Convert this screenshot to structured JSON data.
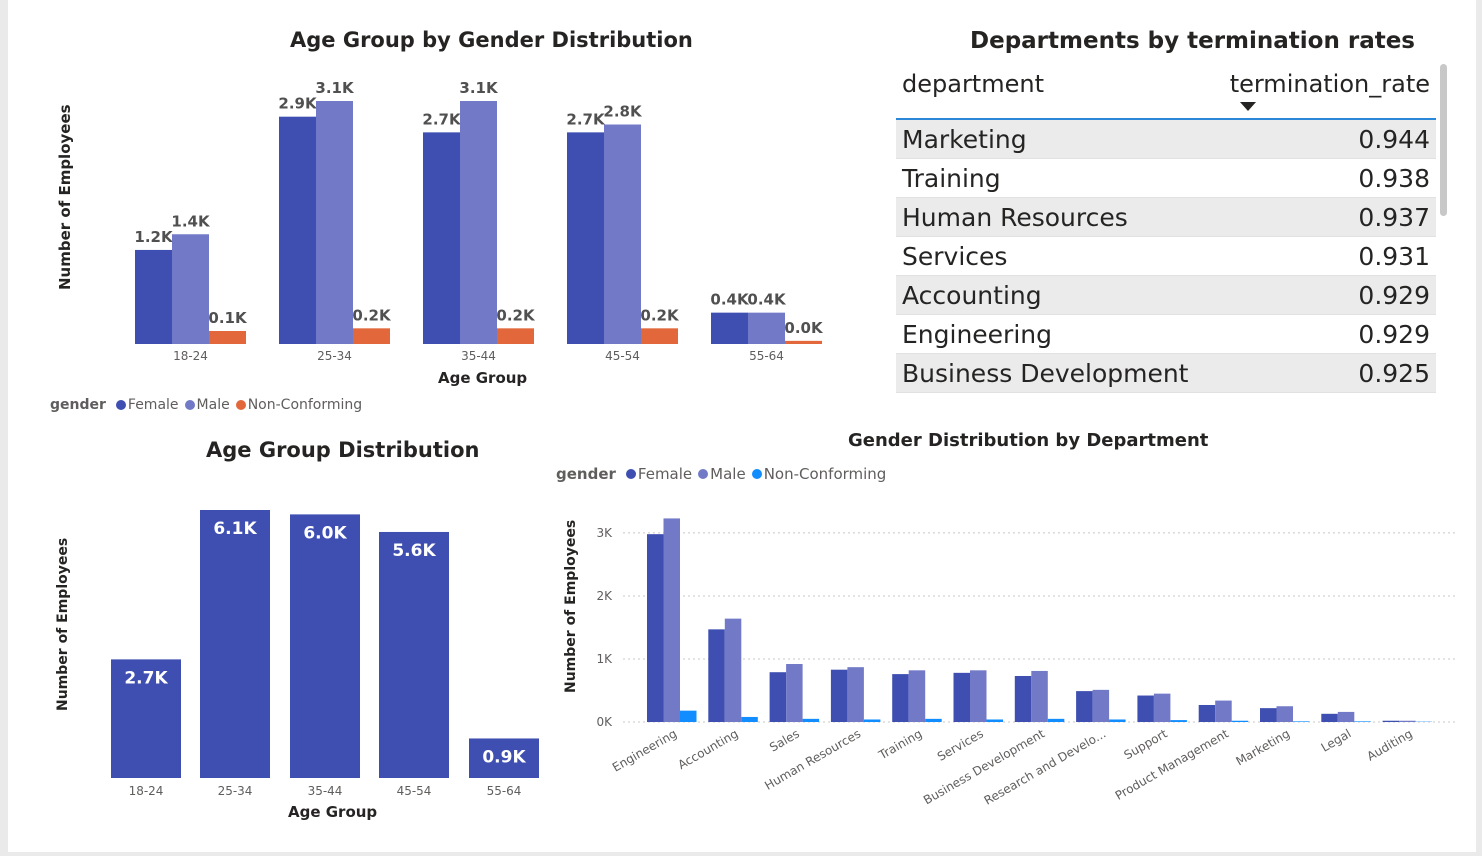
{
  "colors": {
    "female": "#3f4fb1",
    "male": "#727ac8",
    "non_conforming_orange": "#e2683c",
    "non_conforming_blue": "#118dff"
  },
  "legend": {
    "title": "gender",
    "items": [
      "Female",
      "Male",
      "Non-Conforming"
    ]
  },
  "chart_data": [
    {
      "type": "bar",
      "title": "Age Group by Gender Distribution",
      "xlabel": "Age Group",
      "ylabel": "Number of Employees",
      "categories": [
        "18-24",
        "25-34",
        "35-44",
        "45-54",
        "55-64"
      ],
      "series": [
        {
          "name": "Female",
          "values": [
            1.2,
            2.9,
            2.7,
            2.7,
            0.4
          ],
          "labels": [
            "1.2K",
            "2.9K",
            "2.7K",
            "2.7K",
            "0.4K"
          ]
        },
        {
          "name": "Male",
          "values": [
            1.4,
            3.1,
            3.1,
            2.8,
            0.4
          ],
          "labels": [
            "1.4K",
            "3.1K",
            "3.1K",
            "2.8K",
            "0.4K"
          ]
        },
        {
          "name": "Non-Conforming",
          "values": [
            0.1,
            0.2,
            0.2,
            0.2,
            0.04
          ],
          "labels": [
            "0.1K",
            "0.2K",
            "0.2K",
            "0.2K",
            "0.0K"
          ]
        }
      ],
      "unit": "K",
      "grid": false,
      "legend_position": "bottom-left"
    },
    {
      "type": "bar",
      "title": "Age Group Distribution",
      "xlabel": "Age Group",
      "ylabel": "Number of Employees",
      "categories": [
        "18-24",
        "25-34",
        "35-44",
        "45-54",
        "55-64"
      ],
      "values": [
        2.7,
        6.1,
        6.0,
        5.6,
        0.9
      ],
      "labels": [
        "2.7K",
        "6.1K",
        "6.0K",
        "5.6K",
        "0.9K"
      ],
      "unit": "K",
      "grid": false
    },
    {
      "type": "bar",
      "title": "Gender Distribution by Department",
      "xlabel": "",
      "ylabel": "Number of Employees",
      "categories": [
        "Engineering",
        "Accounting",
        "Sales",
        "Human Resources",
        "Training",
        "Services",
        "Business Development",
        "Research and Develo...",
        "Support",
        "Product Management",
        "Marketing",
        "Legal",
        "Auditing"
      ],
      "series": [
        {
          "name": "Female",
          "values": [
            2980,
            1470,
            790,
            830,
            760,
            780,
            730,
            490,
            420,
            270,
            220,
            130,
            20
          ]
        },
        {
          "name": "Male",
          "values": [
            3230,
            1640,
            920,
            870,
            820,
            820,
            810,
            510,
            450,
            340,
            250,
            160,
            20
          ]
        },
        {
          "name": "Non-Conforming",
          "values": [
            180,
            80,
            50,
            40,
            50,
            40,
            50,
            40,
            30,
            20,
            10,
            10,
            5
          ]
        }
      ],
      "yticks": [
        "0K",
        "1K",
        "2K",
        "3K"
      ],
      "ylim": [
        0,
        3300
      ],
      "grid": true,
      "legend_position": "top-left"
    },
    {
      "type": "table",
      "title": "Departments by termination rates",
      "columns": [
        "department",
        "termination_rate"
      ],
      "rows": [
        [
          "Marketing",
          "0.944"
        ],
        [
          "Training",
          "0.938"
        ],
        [
          "Human Resources",
          "0.937"
        ],
        [
          "Services",
          "0.931"
        ],
        [
          "Accounting",
          "0.929"
        ],
        [
          "Engineering",
          "0.929"
        ],
        [
          "Business Development",
          "0.925"
        ]
      ]
    }
  ]
}
